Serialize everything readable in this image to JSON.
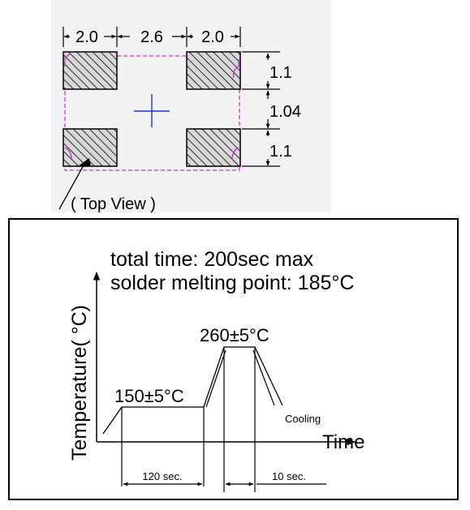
{
  "footprint": {
    "dim_left_pad": "2.0",
    "dim_gap": "2.6",
    "dim_right_pad": "2.0",
    "dim_pad_height_top": "1.1",
    "dim_pad_gap": "1.04",
    "dim_pad_height_bottom": "1.1",
    "view_label": "( Top View )",
    "colors": {
      "outline": "#cc33cc",
      "crosshair": "#2233cc",
      "hatch": "#000000",
      "panel_bg": "#f2f2f2"
    }
  },
  "reflow": {
    "note_line1": "total time: 200sec max",
    "note_line2": "solder melting point: 185°C",
    "y_axis_label": "Temperature( °C)",
    "x_axis_label": "Time",
    "peak_label": "260±5°C",
    "preheat_label": "150±5°C",
    "cooling_label": "Cooling",
    "preheat_duration": "120 sec.",
    "peak_duration": "10 sec."
  }
}
